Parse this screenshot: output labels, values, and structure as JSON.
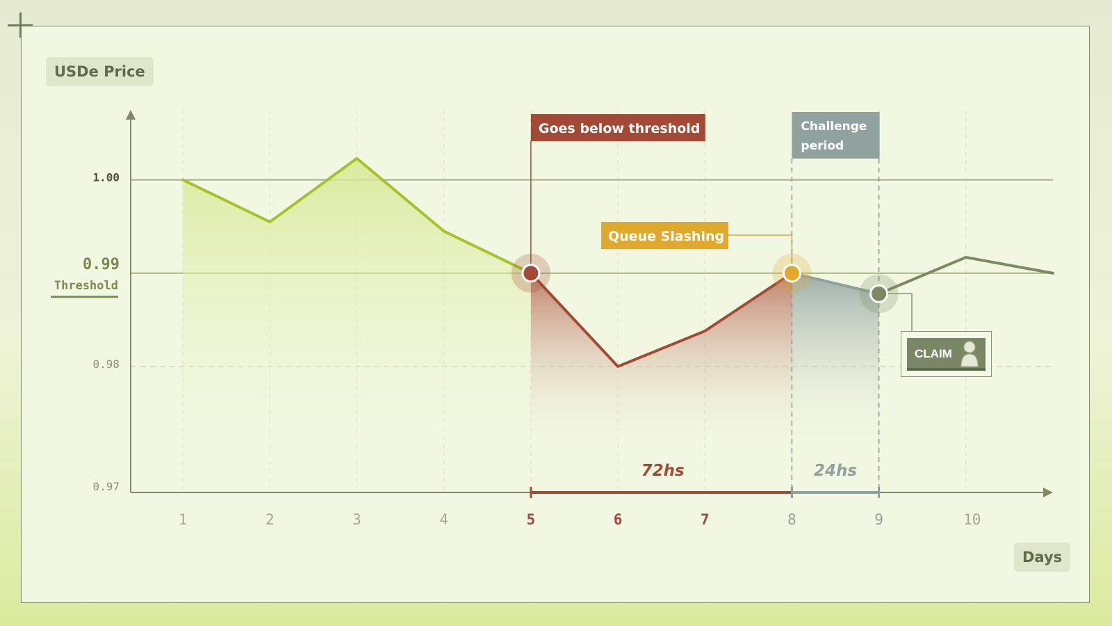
{
  "labels": {
    "y_title": "USDe Price",
    "x_title": "Days",
    "threshold_value": "0.99",
    "threshold_label": "Threshold",
    "below_threshold": "Goes below threshold",
    "queue_slashing": "Queue Slashing",
    "challenge_line1": "Challenge",
    "challenge_line2": "period",
    "duration_72": "72hs",
    "duration_24": "24hs",
    "claim": "CLAIM"
  },
  "colors": {
    "lime": "#a6c22a",
    "rust": "#a24a36",
    "gold": "#e0a92b",
    "slate": "#8fa29e",
    "olive": "#7c8a63",
    "axis": "#7e8a6a"
  },
  "icons": [
    "person-avatar-icon",
    "plus-icon"
  ],
  "chart_data": {
    "type": "line",
    "x_ticks": [
      "1",
      "2",
      "3",
      "4",
      "5",
      "6",
      "7",
      "8",
      "9",
      "10"
    ],
    "y_ticks": [
      "1.00",
      "0.99",
      "0.98",
      "0.97"
    ],
    "ylim": [
      0.9665,
      1.0075
    ],
    "xlim": [
      0.4,
      11
    ],
    "x": [
      1,
      2,
      3,
      4,
      5,
      6,
      7,
      8,
      9,
      10,
      11
    ],
    "values": [
      1.0,
      0.9955,
      1.0023,
      0.9945,
      0.99,
      0.98,
      0.9838,
      0.99,
      0.9878,
      0.9917,
      0.99
    ],
    "threshold": 0.99,
    "segments": [
      {
        "from": 1,
        "to": 5,
        "color": "#a6c22a"
      },
      {
        "from": 5,
        "to": 8,
        "color": "#a24a36"
      },
      {
        "from": 8,
        "to": 9,
        "color": "#8fa29e"
      },
      {
        "from": 9,
        "to": 11,
        "color": "#7c8a63"
      }
    ],
    "markers": [
      {
        "x": 5,
        "y": 0.99,
        "color": "#a24a36"
      },
      {
        "x": 8,
        "y": 0.99,
        "color": "#e0a92b"
      },
      {
        "x": 9,
        "y": 0.9878,
        "color": "#7c8a63"
      }
    ],
    "periods": [
      {
        "from": 5,
        "to": 8,
        "label": "72hs",
        "color": "#a24a36"
      },
      {
        "from": 8,
        "to": 9,
        "label": "24hs",
        "color": "#8fa29e"
      }
    ],
    "grid": true
  }
}
